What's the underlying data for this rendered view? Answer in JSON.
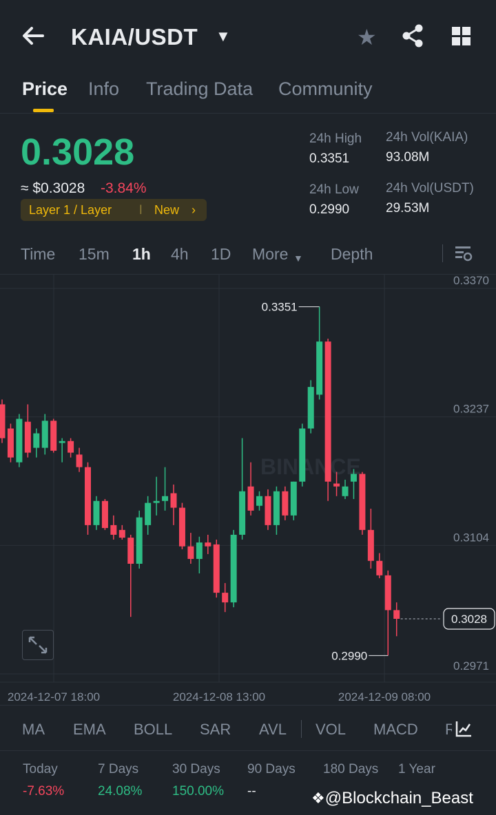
{
  "header": {
    "pair": "KAIA/USDT",
    "tabs": [
      "Price",
      "Info",
      "Trading Data",
      "Community"
    ]
  },
  "price": {
    "last": "0.3028",
    "usd": "≈ $0.3028",
    "change": "-3.84%",
    "tag": "Layer 1 / Layer",
    "tag_new": "New",
    "high_label": "24h High",
    "high": "0.3351",
    "low_label": "24h Low",
    "low": "0.2990",
    "vol_kaia_label": "24h Vol(KAIA)",
    "vol_kaia": "93.08M",
    "vol_usdt_label": "24h Vol(USDT)",
    "vol_usdt": "29.53M"
  },
  "intervals": [
    "Time",
    "15m",
    "1h",
    "4h",
    "1D",
    "More",
    "Depth"
  ],
  "active_interval": "1h",
  "chart_data": {
    "type": "candlestick",
    "y_ticks": [
      "0.3370",
      "0.3237",
      "0.3104",
      "0.2971"
    ],
    "x_ticks": [
      "2024-12-07 18:00",
      "2024-12-08 13:00",
      "2024-12-09 08:00"
    ],
    "ylim": [
      0.2971,
      0.337
    ],
    "high_annotation": "0.3351",
    "low_annotation": "0.2990",
    "last_price_label": "0.3028",
    "watermark": "BINANCE",
    "colors": {
      "up": "#2ebd85",
      "down": "#f6465d"
    },
    "candles": [
      {
        "o": 0.325,
        "h": 0.3255,
        "l": 0.321,
        "c": 0.3215
      },
      {
        "o": 0.3225,
        "h": 0.323,
        "l": 0.319,
        "c": 0.3195
      },
      {
        "o": 0.319,
        "h": 0.324,
        "l": 0.3185,
        "c": 0.3235
      },
      {
        "o": 0.3232,
        "h": 0.325,
        "l": 0.3195,
        "c": 0.32
      },
      {
        "o": 0.3205,
        "h": 0.3225,
        "l": 0.3195,
        "c": 0.322
      },
      {
        "o": 0.3205,
        "h": 0.324,
        "l": 0.3198,
        "c": 0.3233
      },
      {
        "o": 0.3233,
        "h": 0.3235,
        "l": 0.32,
        "c": 0.3202
      },
      {
        "o": 0.321,
        "h": 0.3215,
        "l": 0.319,
        "c": 0.3212
      },
      {
        "o": 0.3212,
        "h": 0.3215,
        "l": 0.3195,
        "c": 0.32
      },
      {
        "o": 0.3198,
        "h": 0.3205,
        "l": 0.318,
        "c": 0.3185
      },
      {
        "o": 0.3185,
        "h": 0.319,
        "l": 0.3115,
        "c": 0.3125
      },
      {
        "o": 0.3125,
        "h": 0.3155,
        "l": 0.312,
        "c": 0.315
      },
      {
        "o": 0.315,
        "h": 0.3152,
        "l": 0.312,
        "c": 0.3122
      },
      {
        "o": 0.3125,
        "h": 0.3135,
        "l": 0.311,
        "c": 0.3115
      },
      {
        "o": 0.312,
        "h": 0.3125,
        "l": 0.311,
        "c": 0.3112
      },
      {
        "o": 0.3112,
        "h": 0.3115,
        "l": 0.303,
        "c": 0.3085
      },
      {
        "o": 0.3085,
        "h": 0.314,
        "l": 0.308,
        "c": 0.3133
      },
      {
        "o": 0.3125,
        "h": 0.3155,
        "l": 0.3115,
        "c": 0.3148
      },
      {
        "o": 0.3148,
        "h": 0.3175,
        "l": 0.3135,
        "c": 0.315
      },
      {
        "o": 0.315,
        "h": 0.3185,
        "l": 0.314,
        "c": 0.3155
      },
      {
        "o": 0.3158,
        "h": 0.3167,
        "l": 0.3125,
        "c": 0.3143
      },
      {
        "o": 0.3143,
        "h": 0.3148,
        "l": 0.31,
        "c": 0.3103
      },
      {
        "o": 0.3103,
        "h": 0.3117,
        "l": 0.3085,
        "c": 0.309
      },
      {
        "o": 0.309,
        "h": 0.3113,
        "l": 0.3075,
        "c": 0.3107
      },
      {
        "o": 0.3107,
        "h": 0.3115,
        "l": 0.3095,
        "c": 0.3103
      },
      {
        "o": 0.3105,
        "h": 0.311,
        "l": 0.305,
        "c": 0.3055
      },
      {
        "o": 0.3055,
        "h": 0.3065,
        "l": 0.3035,
        "c": 0.3045
      },
      {
        "o": 0.3045,
        "h": 0.312,
        "l": 0.304,
        "c": 0.3115
      },
      {
        "o": 0.3115,
        "h": 0.3215,
        "l": 0.311,
        "c": 0.316
      },
      {
        "o": 0.3165,
        "h": 0.319,
        "l": 0.3135,
        "c": 0.314
      },
      {
        "o": 0.3145,
        "h": 0.316,
        "l": 0.314,
        "c": 0.3155
      },
      {
        "o": 0.3155,
        "h": 0.3162,
        "l": 0.312,
        "c": 0.3125
      },
      {
        "o": 0.3125,
        "h": 0.3165,
        "l": 0.3115,
        "c": 0.316
      },
      {
        "o": 0.316,
        "h": 0.3165,
        "l": 0.313,
        "c": 0.3135
      },
      {
        "o": 0.3135,
        "h": 0.317,
        "l": 0.313,
        "c": 0.317
      },
      {
        "o": 0.317,
        "h": 0.323,
        "l": 0.3165,
        "c": 0.3225
      },
      {
        "o": 0.3225,
        "h": 0.3275,
        "l": 0.322,
        "c": 0.3268
      },
      {
        "o": 0.326,
        "h": 0.3351,
        "l": 0.3255,
        "c": 0.3315
      },
      {
        "o": 0.3315,
        "h": 0.3318,
        "l": 0.315,
        "c": 0.317
      },
      {
        "o": 0.3168,
        "h": 0.318,
        "l": 0.3155,
        "c": 0.3165
      },
      {
        "o": 0.3155,
        "h": 0.3172,
        "l": 0.3152,
        "c": 0.3165
      },
      {
        "o": 0.317,
        "h": 0.3183,
        "l": 0.3152,
        "c": 0.3178
      },
      {
        "o": 0.3178,
        "h": 0.318,
        "l": 0.3115,
        "c": 0.312
      },
      {
        "o": 0.312,
        "h": 0.3142,
        "l": 0.308,
        "c": 0.3088
      },
      {
        "o": 0.3088,
        "h": 0.3096,
        "l": 0.307,
        "c": 0.3073
      },
      {
        "o": 0.3073,
        "h": 0.3078,
        "l": 0.299,
        "c": 0.3037
      },
      {
        "o": 0.3037,
        "h": 0.3045,
        "l": 0.301,
        "c": 0.3028
      }
    ]
  },
  "indicators": [
    "MA",
    "EMA",
    "BOLL",
    "SAR",
    "AVL",
    "VOL",
    "MACD",
    "R"
  ],
  "performance": [
    {
      "label": "Today",
      "value": "-7.63%",
      "color": "#f6465d"
    },
    {
      "label": "7 Days",
      "value": "24.08%",
      "color": "#2ebd85"
    },
    {
      "label": "30 Days",
      "value": "150.00%",
      "color": "#2ebd85"
    },
    {
      "label": "90 Days",
      "value": "--",
      "color": "#eaecef"
    },
    {
      "label": "180 Days",
      "value": "",
      "color": "#eaecef"
    },
    {
      "label": "1 Year",
      "value": "",
      "color": "#eaecef"
    }
  ],
  "watermark": "@Blockchain_Beast"
}
